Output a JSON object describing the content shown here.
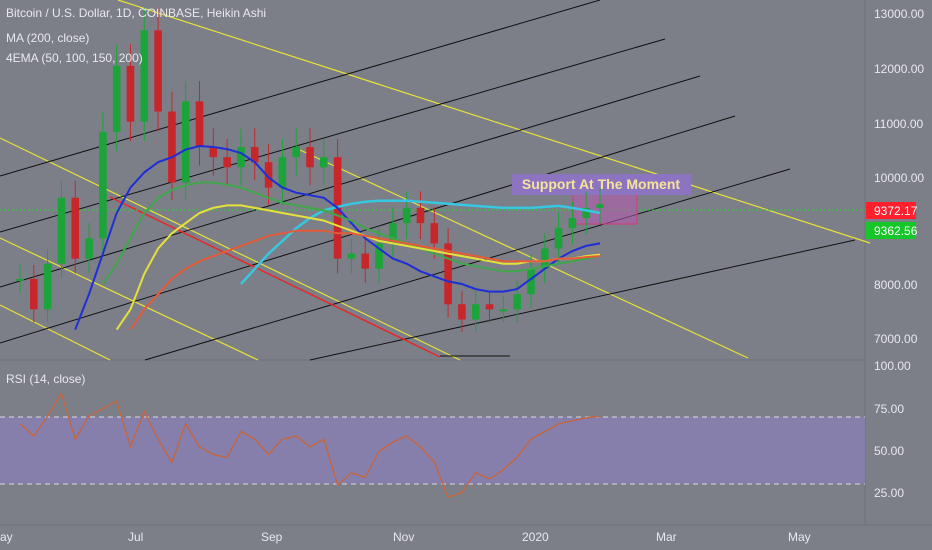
{
  "header": {
    "title_line": "Bitcoin / U.S. Dollar, 1D, COINBASE, Heikin Ashi",
    "indicator_ma": "MA (200, close)",
    "indicator_ema": "4EMA (50, 100, 150, 200)"
  },
  "annotation": {
    "text": "Support At The Moment"
  },
  "price_axis": {
    "ticks": [
      "13000.00",
      "12000.00",
      "11000.00",
      "10000.00",
      "8000.00",
      "7000.00"
    ]
  },
  "price_tags": [
    {
      "text": "9372.17",
      "color": "#ff1f2d"
    },
    {
      "text": "9362.56",
      "color": "#16c728"
    }
  ],
  "rsi": {
    "label": "RSI (14, close)",
    "ticks": [
      "100.00",
      "75.00",
      "50.00",
      "25.00"
    ]
  },
  "time_axis": {
    "labels": [
      "ay",
      "Jul",
      "Sep",
      "Nov",
      "2020",
      "Mar",
      "May"
    ]
  },
  "colors": {
    "background": "#7d7f88",
    "candle_up": "#1aa43a",
    "candle_down": "#c7262b",
    "ma200": "#37c7e0",
    "ema50": "#1f2fd6",
    "ema100": "#3fa74a",
    "ema150": "#e6e13a",
    "ema200": "#e35b3a",
    "rsi_line": "#c8643a",
    "rsi_band": "#8a7fb7",
    "channel": "#e6e13a",
    "fan": "#111111",
    "red_line": "#e52a2a",
    "support_box": "#b65ab0",
    "annotation_bg": "#8d74c1",
    "annotation_text": "#f5e49a"
  },
  "chart_data": {
    "type": "candlestick",
    "title": "Bitcoin / U.S. Dollar, 1D, COINBASE, Heikin Ashi",
    "price_range": [
      6400,
      13300
    ],
    "rsi_range": [
      15,
      100
    ],
    "x_labels": [
      "ay",
      "Jul",
      "Sep",
      "Nov",
      "2020",
      "Mar",
      "May"
    ],
    "closes": [
      7900,
      7300,
      8200,
      9500,
      8300,
      8700,
      10800,
      12100,
      11000,
      12800,
      11200,
      9800,
      11400,
      10500,
      10300,
      10100,
      10500,
      10200,
      9700,
      10300,
      10500,
      10100,
      10300,
      8300,
      8400,
      8100,
      8600,
      9000,
      9300,
      9000,
      8600,
      7400,
      7100,
      7400,
      7300,
      7300,
      7600,
      8100,
      8500,
      8900,
      9100,
      9300,
      9372
    ],
    "series": [
      {
        "name": "MA (200, close)",
        "values": [
          null,
          null,
          null,
          null,
          null,
          null,
          null,
          null,
          null,
          null,
          null,
          null,
          null,
          null,
          null,
          null,
          7800,
          8100,
          8400,
          8650,
          8900,
          9100,
          9250,
          9320,
          9380,
          9420,
          9440,
          9440,
          9440,
          9420,
          9400,
          9380,
          9360,
          9340,
          9320,
          9300,
          9300,
          9300,
          9320,
          9340,
          9300,
          9250,
          9200
        ]
      },
      {
        "name": "EMA 50",
        "values": [
          null,
          null,
          null,
          null,
          6900,
          7600,
          8400,
          9200,
          9700,
          10000,
          10200,
          10300,
          10450,
          10520,
          10500,
          10460,
          10380,
          10200,
          9900,
          9700,
          9600,
          9550,
          9500,
          9300,
          9000,
          8700,
          8500,
          8300,
          8200,
          8050,
          7950,
          7850,
          7800,
          7700,
          7650,
          7650,
          7700,
          7900,
          8100,
          8300,
          8450,
          8550,
          8600
        ]
      },
      {
        "name": "EMA 100",
        "values": [
          null,
          null,
          null,
          null,
          null,
          null,
          7800,
          8200,
          8700,
          9200,
          9500,
          9650,
          9750,
          9800,
          9800,
          9760,
          9700,
          9600,
          9500,
          9400,
          9350,
          9300,
          9250,
          9150,
          9050,
          8900,
          8800,
          8700,
          8600,
          8500,
          8400,
          8300,
          8200,
          8150,
          8100,
          8050,
          8050,
          8100,
          8150,
          8200,
          8250,
          8300,
          8350
        ]
      },
      {
        "name": "EMA 150",
        "values": [
          null,
          null,
          null,
          null,
          null,
          null,
          null,
          6900,
          7300,
          8000,
          8500,
          8800,
          9000,
          9200,
          9300,
          9350,
          9350,
          9300,
          9250,
          9200,
          9150,
          9100,
          9050,
          8950,
          8850,
          8750,
          8650,
          8600,
          8550,
          8500,
          8450,
          8400,
          8350,
          8300,
          8250,
          8200,
          8200,
          8250,
          8250,
          8300,
          8300,
          8350,
          8380
        ]
      },
      {
        "name": "EMA 200",
        "values": [
          null,
          null,
          null,
          null,
          null,
          null,
          null,
          null,
          6900,
          7300,
          7600,
          7900,
          8100,
          8250,
          8350,
          8450,
          8550,
          8650,
          8750,
          8800,
          8850,
          8850,
          8850,
          8800,
          8800,
          8750,
          8700,
          8650,
          8600,
          8550,
          8500,
          8450,
          8400,
          8350,
          8300,
          8250,
          8250,
          8250,
          8250,
          8300,
          8300,
          8330,
          8350
        ]
      }
    ],
    "rsi_values": [
      70,
      62,
      75,
      90,
      60,
      75,
      80,
      85,
      55,
      78,
      60,
      45,
      70,
      55,
      50,
      48,
      65,
      60,
      50,
      60,
      62,
      55,
      60,
      30,
      38,
      35,
      52,
      58,
      62,
      55,
      45,
      22,
      25,
      38,
      34,
      40,
      48,
      60,
      65,
      70,
      72,
      74,
      75
    ]
  }
}
